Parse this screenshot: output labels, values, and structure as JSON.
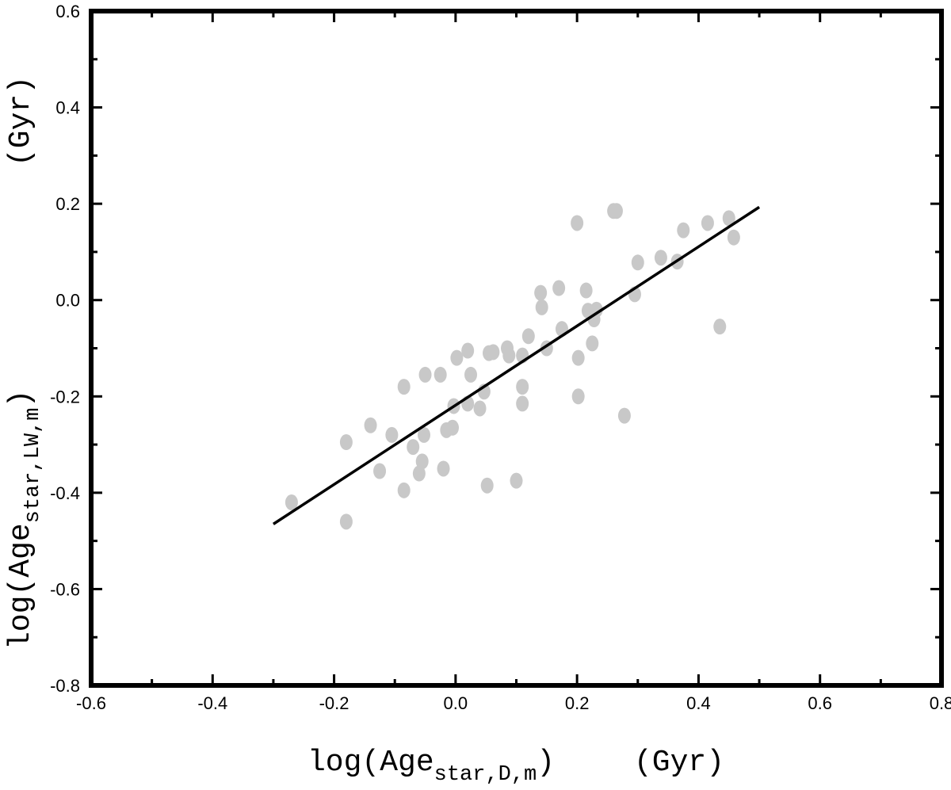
{
  "chart_data": {
    "type": "scatter",
    "xlabel": {
      "prefix": "log(Age",
      "sub": "star,D,m",
      "suffix": ")",
      "unit": "(Gyr)"
    },
    "ylabel": {
      "prefix": "log(Age",
      "sub": "star,LW,m",
      "suffix": ")",
      "unit": "(Gyr)"
    },
    "xlim": [
      -0.6,
      0.8
    ],
    "ylim": [
      -0.8,
      0.6
    ],
    "xticks": [
      "-0.6",
      "-0.4",
      "-0.2",
      "0.0",
      "0.2",
      "0.4",
      "0.6",
      "0.8"
    ],
    "yticks": [
      "-0.8",
      "-0.6",
      "-0.4",
      "-0.2",
      "0.0",
      "0.2",
      "0.4",
      "0.6"
    ],
    "grid": false,
    "marker_color": "#c8c8c8",
    "line_color": "#000000",
    "points": [
      [
        -0.27,
        -0.42
      ],
      [
        -0.18,
        -0.46
      ],
      [
        -0.18,
        -0.295
      ],
      [
        -0.14,
        -0.26
      ],
      [
        -0.125,
        -0.355
      ],
      [
        -0.105,
        -0.28
      ],
      [
        -0.085,
        -0.395
      ],
      [
        -0.085,
        -0.18
      ],
      [
        -0.07,
        -0.305
      ],
      [
        -0.06,
        -0.36
      ],
      [
        -0.055,
        -0.335
      ],
      [
        -0.052,
        -0.28
      ],
      [
        -0.05,
        -0.155
      ],
      [
        -0.025,
        -0.155
      ],
      [
        -0.02,
        -0.35
      ],
      [
        -0.015,
        -0.27
      ],
      [
        -0.005,
        -0.265
      ],
      [
        -0.003,
        -0.22
      ],
      [
        0.002,
        -0.12
      ],
      [
        0.02,
        -0.105
      ],
      [
        0.02,
        -0.215
      ],
      [
        0.025,
        -0.155
      ],
      [
        0.04,
        -0.225
      ],
      [
        0.047,
        -0.19
      ],
      [
        0.052,
        -0.385
      ],
      [
        0.055,
        -0.11
      ],
      [
        0.062,
        -0.108
      ],
      [
        0.085,
        -0.1
      ],
      [
        0.088,
        -0.115
      ],
      [
        0.1,
        -0.375
      ],
      [
        0.11,
        -0.18
      ],
      [
        0.11,
        -0.215
      ],
      [
        0.11,
        -0.115
      ],
      [
        0.12,
        -0.075
      ],
      [
        0.14,
        0.015
      ],
      [
        0.142,
        -0.015
      ],
      [
        0.15,
        -0.1
      ],
      [
        0.17,
        0.025
      ],
      [
        0.175,
        -0.06
      ],
      [
        0.2,
        0.16
      ],
      [
        0.202,
        -0.12
      ],
      [
        0.202,
        -0.2
      ],
      [
        0.215,
        0.02
      ],
      [
        0.218,
        -0.022
      ],
      [
        0.225,
        -0.09
      ],
      [
        0.228,
        -0.04
      ],
      [
        0.232,
        -0.02
      ],
      [
        0.26,
        0.185
      ],
      [
        0.265,
        0.185
      ],
      [
        0.278,
        -0.24
      ],
      [
        0.295,
        0.012
      ],
      [
        0.3,
        0.078
      ],
      [
        0.338,
        0.088
      ],
      [
        0.365,
        0.08
      ],
      [
        0.375,
        0.145
      ],
      [
        0.415,
        0.16
      ],
      [
        0.435,
        -0.055
      ],
      [
        0.45,
        0.17
      ],
      [
        0.458,
        0.13
      ]
    ],
    "fit_line": {
      "x": [
        -0.3,
        0.5
      ],
      "y": [
        -0.465,
        0.193
      ]
    }
  }
}
